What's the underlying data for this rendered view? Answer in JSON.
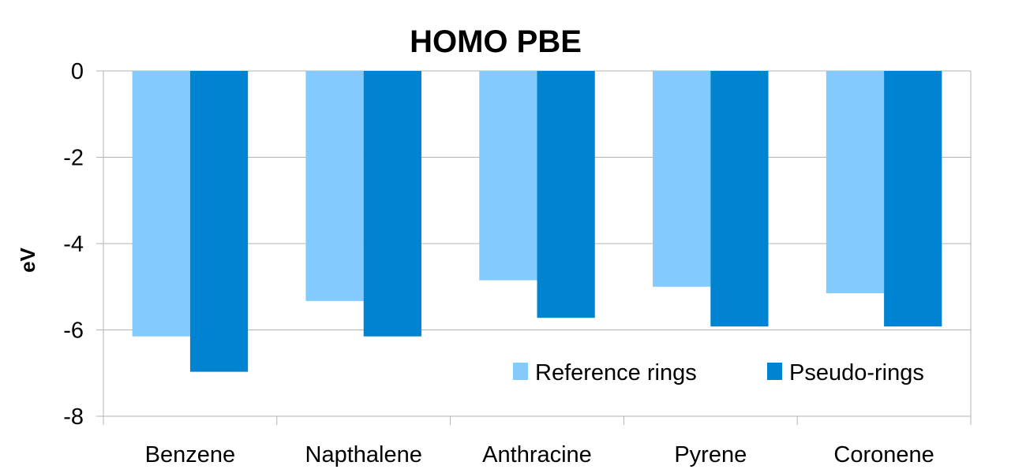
{
  "chart_data": {
    "type": "bar",
    "title": "HOMO PBE",
    "xlabel": "",
    "ylabel": "eV",
    "ylim": [
      -8,
      0
    ],
    "yticks": [
      "0",
      "-2",
      "-4",
      "-6",
      "-8"
    ],
    "grid": true,
    "legend_position": "bottom-right",
    "categories": [
      "Benzene",
      "Napthalene",
      "Anthracine",
      "Pyrene",
      "Coronene"
    ],
    "series": [
      {
        "name": "Reference rings",
        "color": "#83caff",
        "values": [
          -6.15,
          -5.33,
          -4.85,
          -5.0,
          -5.15
        ]
      },
      {
        "name": "Pseudo-rings",
        "color": "#0084d1",
        "values": [
          -6.97,
          -6.15,
          -5.72,
          -5.92,
          -5.92
        ]
      }
    ]
  }
}
